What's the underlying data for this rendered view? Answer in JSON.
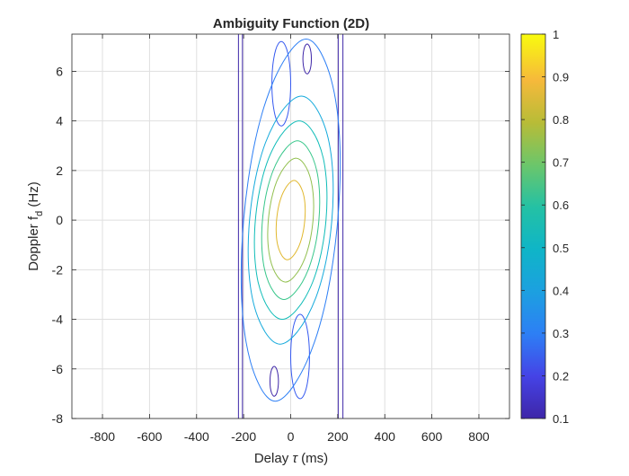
{
  "chart_data": {
    "type": "contour",
    "title": "Ambiguity Function (2D)",
    "xlabel": "Delay τ (ms)",
    "ylabel": "Doppler f_d (Hz)",
    "ylabel_main": "Doppler f",
    "ylabel_sub": "d",
    "ylabel_units": " (Hz)",
    "xlim": [
      -930,
      930
    ],
    "ylim": [
      -8,
      7.5
    ],
    "xticks": [
      -800,
      -600,
      -400,
      -200,
      0,
      200,
      400,
      600,
      800
    ],
    "yticks": [
      -8,
      -6,
      -4,
      -2,
      0,
      2,
      4,
      6
    ],
    "grid": true,
    "colormap": "parula",
    "clim": [
      0.1,
      1
    ],
    "colorbar_ticks": [
      0.1,
      0.2,
      0.3,
      0.4,
      0.5,
      0.6,
      0.7,
      0.8,
      0.9,
      1
    ],
    "colorbar_position": "right",
    "contour_levels": [
      {
        "level": 0.1,
        "color": "#3e26a8",
        "shape": "band",
        "x_extent": [
          -222,
          222
        ]
      },
      {
        "level": 0.1,
        "color": "#3e26a8",
        "shape": "band",
        "x_extent": [
          -205,
          202
        ]
      },
      {
        "level": 0.2,
        "color": "#3559f0",
        "shape": "upper-lobe",
        "x_range": [
          -80,
          0
        ],
        "y_range": [
          3.8,
          7.2
        ]
      },
      {
        "level": 0.2,
        "color": "#3559f0",
        "shape": "lower-lobe",
        "x_range": [
          0,
          80
        ],
        "y_range": [
          -7.2,
          -3.8
        ]
      },
      {
        "level": 0.3,
        "color": "#2d7ff5",
        "shape": "ellipse",
        "center": [
          0,
          0
        ],
        "half_width": 200,
        "half_height": 7.3
      },
      {
        "level": 0.4,
        "color": "#15aadc",
        "shape": "ellipse",
        "center": [
          0,
          0
        ],
        "half_width": 175,
        "half_height": 5.0
      },
      {
        "level": 0.5,
        "color": "#0fbcb8",
        "shape": "ellipse",
        "center": [
          0,
          0
        ],
        "half_width": 150,
        "half_height": 4.0
      },
      {
        "level": 0.6,
        "color": "#37c68a",
        "shape": "ellipse",
        "center": [
          0,
          0
        ],
        "half_width": 120,
        "half_height": 3.2
      },
      {
        "level": 0.7,
        "color": "#92c04f",
        "shape": "ellipse",
        "center": [
          0,
          0
        ],
        "half_width": 95,
        "half_height": 2.5
      },
      {
        "level": 0.8,
        "color": "#e1b82f",
        "shape": "ellipse",
        "center": [
          0,
          0
        ],
        "half_width": 60,
        "half_height": 1.6
      }
    ]
  }
}
